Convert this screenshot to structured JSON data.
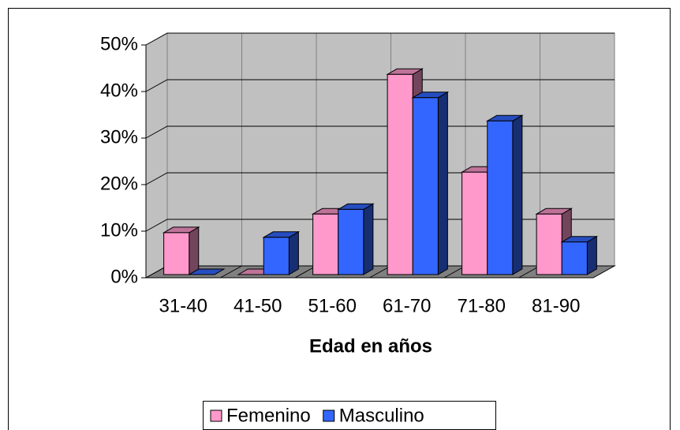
{
  "chart_data": {
    "type": "bar3d",
    "x_label": "Edad en años",
    "categories": [
      "31-40",
      "41-50",
      "51-60",
      "61-70",
      "71-80",
      "81-90"
    ],
    "series": [
      {
        "name": "Femenino",
        "color": "#ff99cc",
        "values": [
          9,
          0,
          13,
          43,
          22,
          13
        ]
      },
      {
        "name": "Masculino",
        "color": "#3366ff",
        "values": [
          0,
          8,
          14,
          38,
          33,
          7
        ]
      }
    ],
    "ylim": [
      0,
      50
    ],
    "yticks": [
      {
        "value": 0,
        "label": "0%"
      },
      {
        "value": 10,
        "label": "10%"
      },
      {
        "value": 20,
        "label": "20%"
      },
      {
        "value": 30,
        "label": "30%"
      },
      {
        "value": 40,
        "label": "40%"
      },
      {
        "value": 50,
        "label": "50%"
      }
    ],
    "grid": true,
    "legend": "bottom"
  }
}
